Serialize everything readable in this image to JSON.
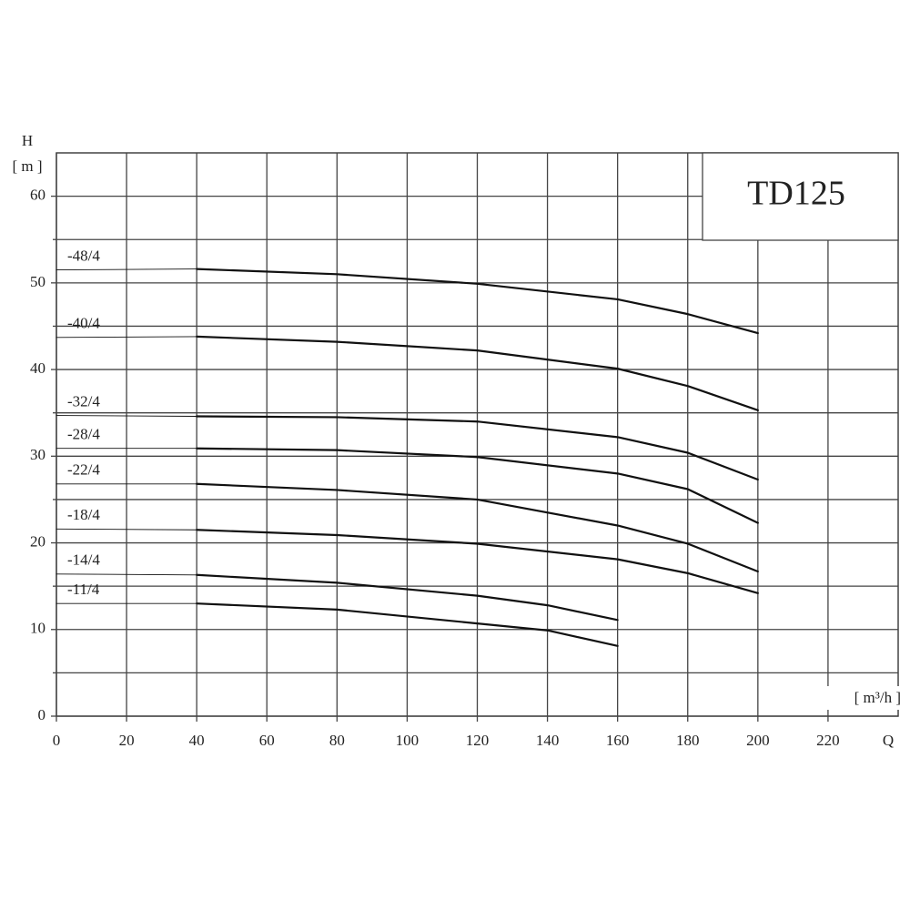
{
  "chart_data": {
    "type": "line",
    "title": "TD125",
    "y_label": "H",
    "y_unit": "[ m ]",
    "x_label": "Q",
    "x_unit": "[ m³/h ]",
    "xlim": [
      0,
      240
    ],
    "xticks": [
      0,
      20,
      40,
      60,
      80,
      100,
      120,
      140,
      160,
      180,
      200,
      220
    ],
    "ylim": [
      0,
      65
    ],
    "yticks": [
      0,
      10,
      20,
      30,
      40,
      50,
      60
    ],
    "y_minor_ticks": [
      5,
      15,
      25,
      35,
      45,
      55
    ],
    "grid": true,
    "series": [
      {
        "name": "-48/4",
        "color": "#111111",
        "x": [
          0,
          40,
          80,
          120,
          160,
          180,
          200
        ],
        "values": [
          51.5,
          51.6,
          51.0,
          49.9,
          48.1,
          46.4,
          44.2
        ]
      },
      {
        "name": "-40/4",
        "color": "#111111",
        "x": [
          0,
          40,
          80,
          120,
          160,
          180,
          200
        ],
        "values": [
          43.7,
          43.8,
          43.2,
          42.2,
          40.1,
          38.1,
          35.3
        ]
      },
      {
        "name": "-32/4",
        "color": "#111111",
        "x": [
          0,
          40,
          80,
          120,
          160,
          180,
          200
        ],
        "values": [
          34.7,
          34.6,
          34.5,
          34.0,
          32.2,
          30.4,
          27.3
        ]
      },
      {
        "name": "-28/4",
        "color": "#111111",
        "x": [
          0,
          40,
          80,
          120,
          160,
          180,
          200
        ],
        "values": [
          30.9,
          30.9,
          30.7,
          29.9,
          28.0,
          26.2,
          22.3
        ]
      },
      {
        "name": "-22/4",
        "color": "#111111",
        "x": [
          0,
          40,
          80,
          120,
          160,
          180,
          200
        ],
        "values": [
          26.8,
          26.8,
          26.1,
          25.0,
          22.0,
          19.9,
          16.7
        ]
      },
      {
        "name": "-18/4",
        "color": "#111111",
        "x": [
          0,
          40,
          80,
          120,
          160,
          180,
          200
        ],
        "values": [
          21.6,
          21.5,
          20.9,
          19.9,
          18.1,
          16.5,
          14.2
        ]
      },
      {
        "name": "-14/4",
        "color": "#111111",
        "x": [
          0,
          40,
          80,
          120,
          140,
          160
        ],
        "values": [
          16.4,
          16.3,
          15.4,
          13.9,
          12.8,
          11.1
        ]
      },
      {
        "name": "-11/4",
        "color": "#111111",
        "x": [
          0,
          40,
          80,
          120,
          140,
          160
        ],
        "values": [
          13.0,
          13.0,
          12.3,
          10.7,
          9.9,
          8.1
        ]
      }
    ]
  }
}
